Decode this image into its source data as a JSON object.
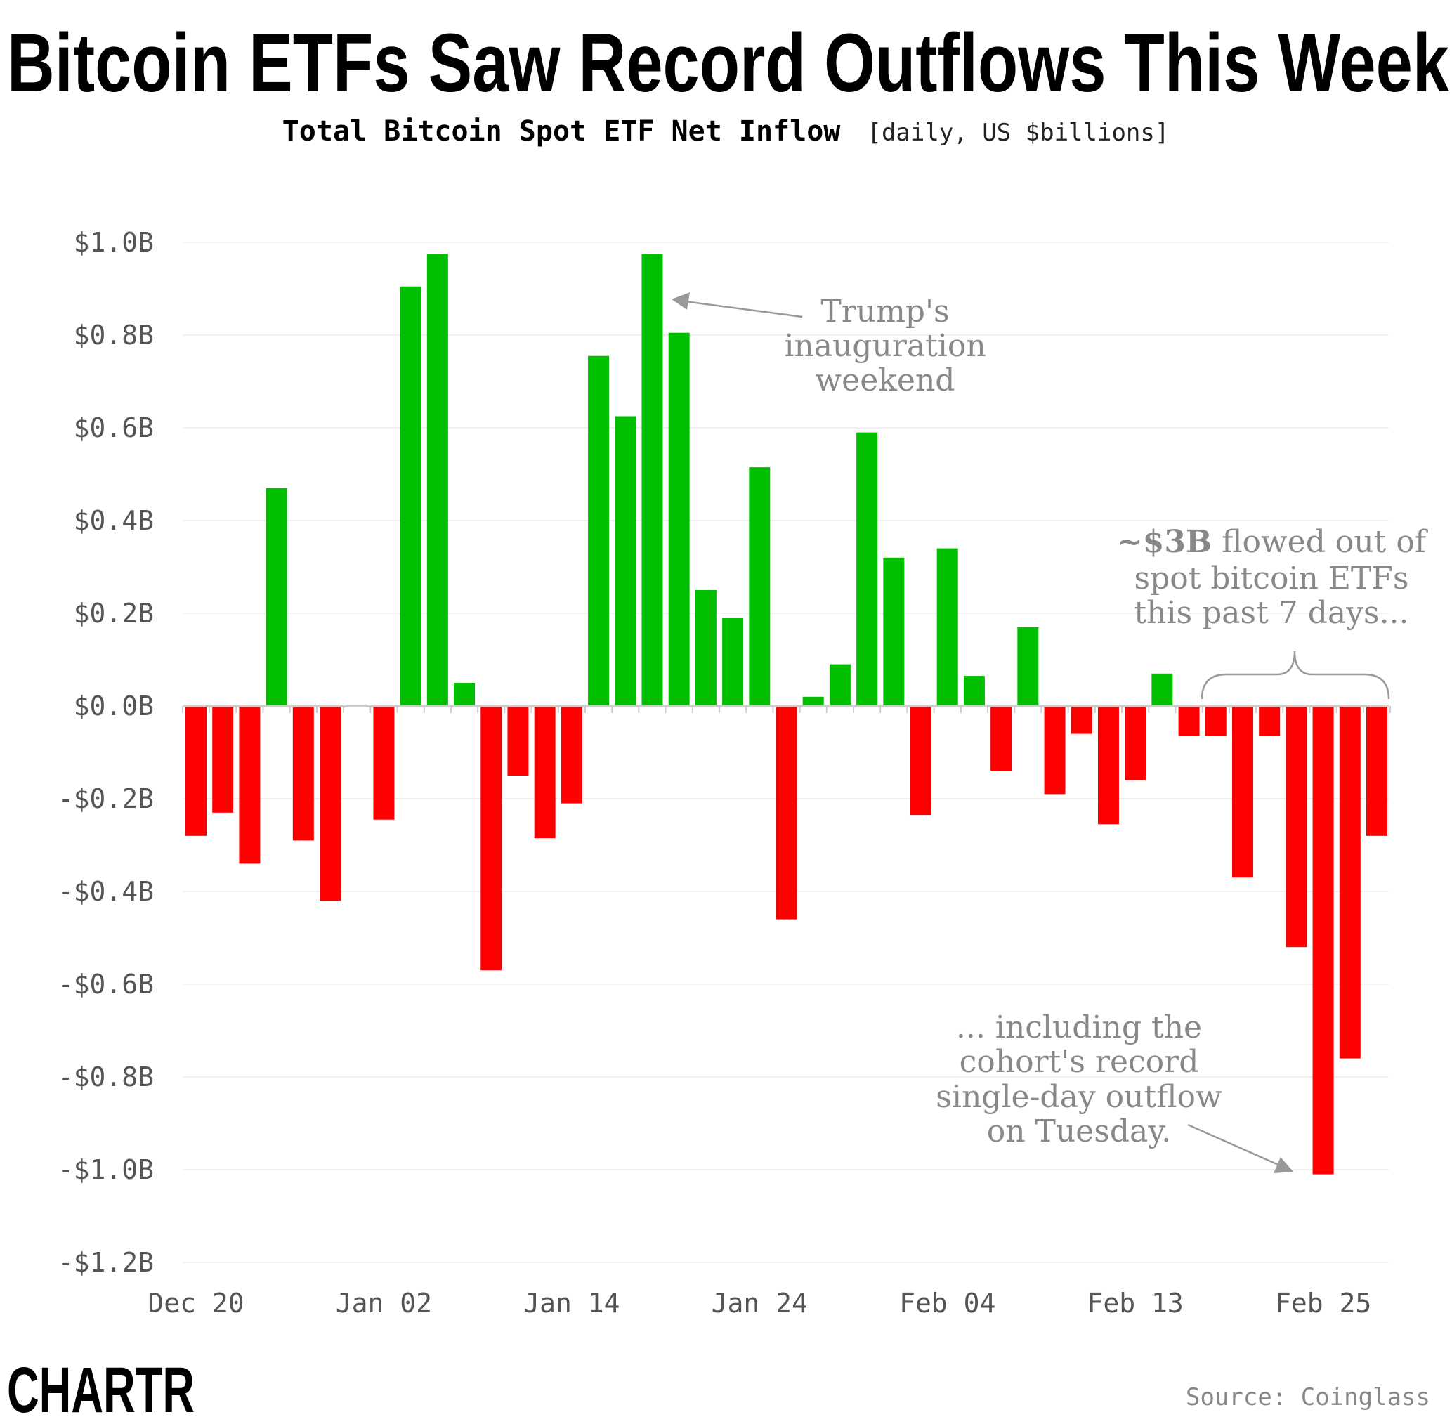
{
  "title": "Bitcoin ETFs Saw Record Outflows This Week",
  "subtitle_bold": "Total Bitcoin Spot ETF Net Inflow",
  "subtitle_light": "[daily, US $billions]",
  "source": "Source: Coinglass",
  "logo": "CHARTR",
  "colors": {
    "positive": "#00bf00",
    "negative": "#ff0000",
    "annotation": "#888888",
    "axis_text": "#555555"
  },
  "chart_data": {
    "type": "bar",
    "ylabel": "",
    "xlabel": "",
    "ylim": [
      -1.2,
      1.0
    ],
    "grid": true,
    "y_ticks": [
      1.0,
      0.8,
      0.6,
      0.4,
      0.2,
      0.0,
      -0.2,
      -0.4,
      -0.6,
      -0.8,
      -1.0,
      -1.2
    ],
    "y_tick_labels": [
      "$1.0B",
      "$0.8B",
      "$0.6B",
      "$0.4B",
      "$0.2B",
      "$0.0B",
      "-$0.2B",
      "-$0.4B",
      "-$0.6B",
      "-$0.8B",
      "-$1.0B",
      "-$1.2B"
    ],
    "x_tick_labels": [
      {
        "bar_index": 0,
        "label": "Dec 20"
      },
      {
        "bar_index": 7,
        "label": "Jan 02"
      },
      {
        "bar_index": 14,
        "label": "Jan 14"
      },
      {
        "bar_index": 21,
        "label": "Jan 24"
      },
      {
        "bar_index": 28,
        "label": "Feb 04"
      },
      {
        "bar_index": 35,
        "label": "Feb 13"
      },
      {
        "bar_index": 42,
        "label": "Feb 25"
      }
    ],
    "values": [
      -0.28,
      -0.23,
      -0.34,
      0.47,
      -0.29,
      -0.42,
      0.003,
      -0.245,
      0.905,
      0.975,
      0.05,
      -0.57,
      -0.15,
      -0.285,
      -0.21,
      0.755,
      0.625,
      0.975,
      0.805,
      0.25,
      0.19,
      0.515,
      -0.46,
      0.02,
      0.09,
      0.59,
      0.32,
      -0.235,
      0.34,
      0.065,
      -0.14,
      0.17,
      -0.19,
      -0.06,
      -0.255,
      -0.16,
      0.07,
      -0.065,
      -0.065,
      -0.37,
      -0.065,
      -0.52,
      -1.01,
      -0.76,
      -0.28
    ],
    "annotations": [
      {
        "lines": [
          "Trump's",
          "inauguration",
          "weekend"
        ],
        "points_to_bar": 17
      },
      {
        "bold": "~$3B",
        "lines": [
          " flowed out of",
          "spot bitcoin ETFs",
          "this past 7 days..."
        ],
        "brace_bars": [
          38,
          44
        ]
      },
      {
        "lines": [
          "... including the",
          "cohort's record",
          "single-day outflow",
          "on Tuesday."
        ],
        "points_to_bar": 42
      }
    ]
  }
}
